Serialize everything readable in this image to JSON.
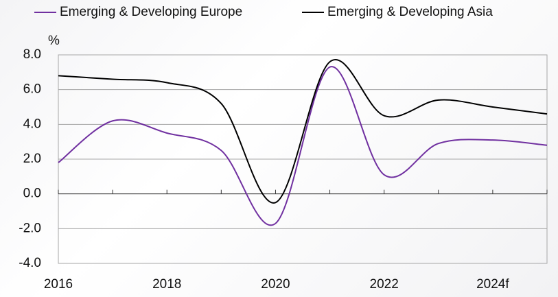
{
  "chart_data": {
    "type": "line",
    "y_label": "%",
    "categories": [
      "2016",
      null,
      "2018",
      null,
      "2020",
      null,
      "2022",
      null,
      "2024f",
      null
    ],
    "series": [
      {
        "name": "Emerging & Developing Europe",
        "color": "#7030a0",
        "values": [
          1.8,
          4.2,
          3.5,
          2.5,
          -1.7,
          7.3,
          1.1,
          2.9,
          3.1,
          2.8
        ]
      },
      {
        "name": "Emerging & Developing Asia",
        "color": "#000000",
        "values": [
          6.8,
          6.6,
          6.4,
          5.2,
          -0.5,
          7.6,
          4.5,
          5.4,
          5.0,
          4.6
        ]
      }
    ],
    "ylim": [
      -4,
      8
    ],
    "yticks": [
      {
        "value": -4,
        "label": "-4.0"
      },
      {
        "value": -2,
        "label": "-2.0"
      },
      {
        "value": 0,
        "label": "0.0"
      },
      {
        "value": 2,
        "label": "2.0"
      },
      {
        "value": 4,
        "label": "4.0"
      },
      {
        "value": 6,
        "label": "6.0"
      },
      {
        "value": 8,
        "label": "8.0"
      }
    ],
    "grid": true,
    "legend": "top"
  }
}
